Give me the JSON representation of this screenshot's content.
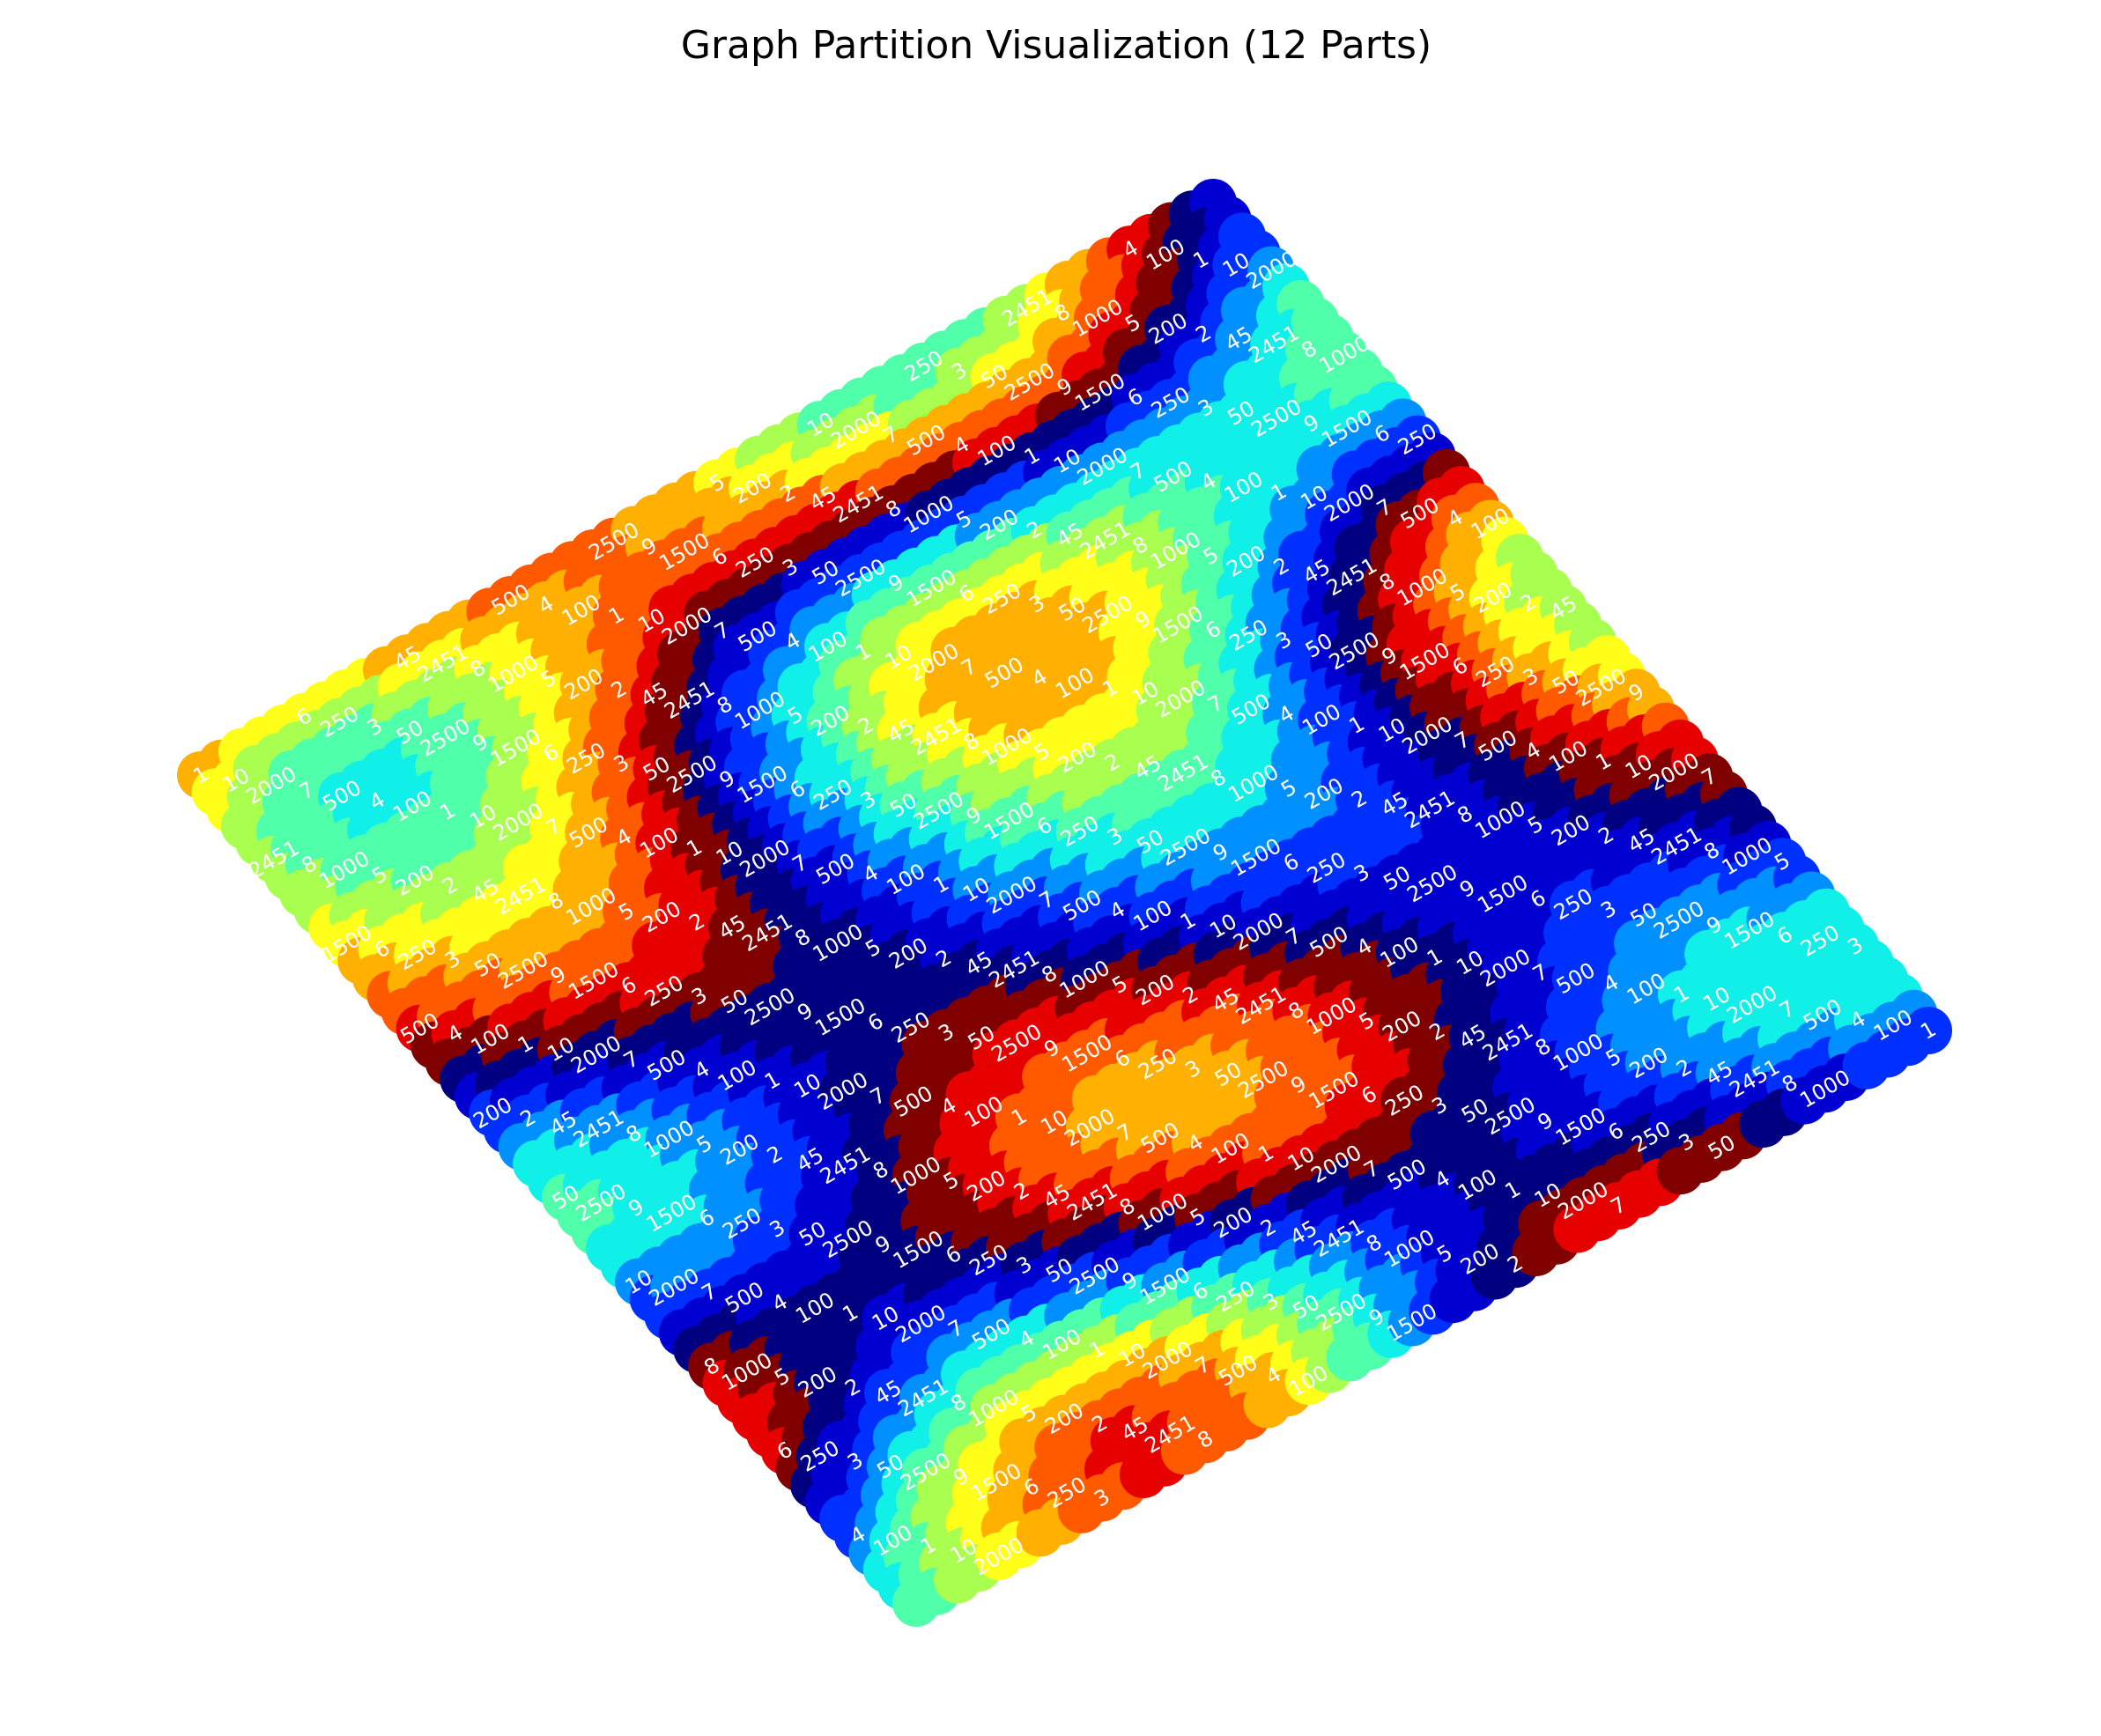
{
  "chart_data": {
    "type": "scatter",
    "title": "Graph Partition Visualization (12 Parts)",
    "layout": "grid graph, rotated",
    "grid_rows": 50,
    "grid_cols": 50,
    "axes_visible": false,
    "grid": false,
    "legend": "none",
    "node_label_color": "#ffffff",
    "colors": [
      "#e60000",
      "#ff5a00",
      "#ffb000",
      "#ffff1a",
      "#a8ff50",
      "#50ffaa",
      "#10f0e8",
      "#0090ff",
      "#0030ff",
      "#0000d0",
      "#000080",
      "#800000"
    ],
    "sample_labels": [
      "1",
      "2",
      "3",
      "4",
      "5",
      "6",
      "7",
      "8",
      "9",
      "10",
      "45",
      "50",
      "100",
      "200",
      "250",
      "500",
      "1000",
      "1500",
      "2000",
      "2451",
      "2500"
    ]
  }
}
